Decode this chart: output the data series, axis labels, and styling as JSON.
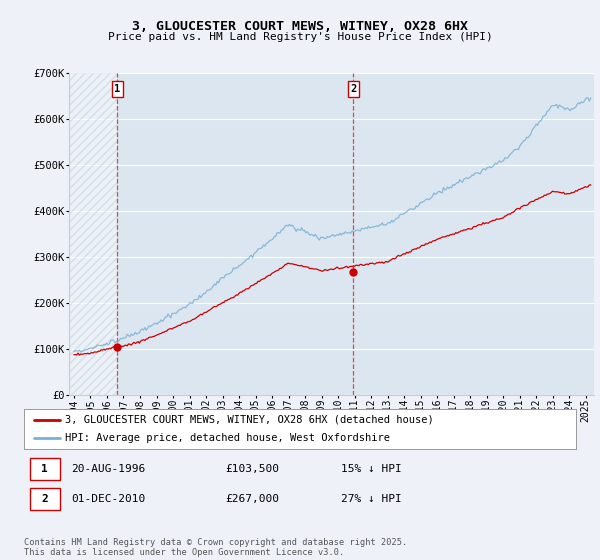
{
  "title_line1": "3, GLOUCESTER COURT MEWS, WITNEY, OX28 6HX",
  "title_line2": "Price paid vs. HM Land Registry's House Price Index (HPI)",
  "background_color": "#eef2f8",
  "plot_bg_color": "#dce6f0",
  "red_color": "#cc0000",
  "blue_color": "#7ab0d4",
  "marker1_date": 1996.63,
  "marker1_value": 103500,
  "marker2_date": 2010.92,
  "marker2_value": 267000,
  "legend_label1": "3, GLOUCESTER COURT MEWS, WITNEY, OX28 6HX (detached house)",
  "legend_label2": "HPI: Average price, detached house, West Oxfordshire",
  "footnote": "Contains HM Land Registry data © Crown copyright and database right 2025.\nThis data is licensed under the Open Government Licence v3.0.",
  "ylim": [
    0,
    700000
  ],
  "xlim_start": 1993.7,
  "xlim_end": 2025.5,
  "yticks": [
    0,
    100000,
    200000,
    300000,
    400000,
    500000,
    600000,
    700000
  ],
  "ytick_labels": [
    "£0",
    "£100K",
    "£200K",
    "£300K",
    "£400K",
    "£500K",
    "£600K",
    "£700K"
  ],
  "xticks": [
    1994,
    1995,
    1996,
    1997,
    1998,
    1999,
    2000,
    2001,
    2002,
    2003,
    2004,
    2005,
    2006,
    2007,
    2008,
    2009,
    2010,
    2011,
    2012,
    2013,
    2014,
    2015,
    2016,
    2017,
    2018,
    2019,
    2020,
    2021,
    2022,
    2023,
    2024,
    2025
  ],
  "hatch_end": 1996.63
}
